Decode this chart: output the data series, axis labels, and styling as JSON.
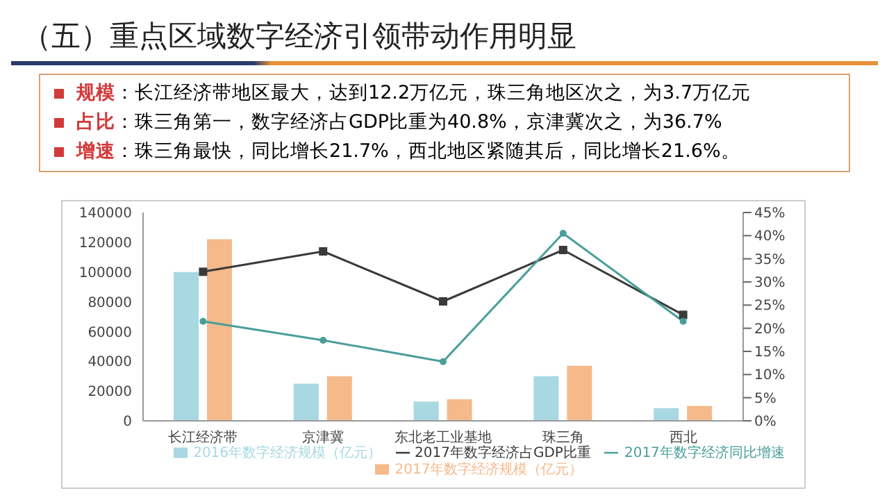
{
  "chart_data": {
    "type": "bar",
    "title": "（五）重点区域数字经济引领带动作用明显",
    "annotations": [
      "规模：长江经济带地区最大，达到12.2万亿元，珠三角地区次之，为3.7万亿元",
      "占比：珠三角第一，数字经济占GDP比重为40.8%，京津冀次之，为36.7%",
      "增速：珠三角最快，同比增长21.7%，西北地区紧随其后，同比增长21.6%。"
    ],
    "categories": [
      "长江经济带",
      "京津冀",
      "东北老工业基地",
      "珠三角",
      "西北"
    ],
    "series": [
      {
        "name": "2016年数字经济规模（亿元）",
        "color": "#a8d8e2",
        "values": [
          100000,
          25000,
          13000,
          30000,
          8500
        ]
      },
      {
        "name": "2017年数字经济规模（亿元）",
        "color": "#f5b98a",
        "values": [
          122000,
          30000,
          14500,
          37000,
          10000
        ]
      },
      {
        "name": "2017年数字经济占GDP比重",
        "type": "line",
        "axis": "y2",
        "marker": "square",
        "color": "#3a3a3a",
        "values": [
          32.2,
          36.6,
          25.8,
          36.9,
          22.9
        ]
      },
      {
        "name": "2017年数字经济同比增速",
        "type": "line",
        "axis": "y2",
        "marker": "circle",
        "color": "#4a9e9a",
        "values": [
          21.5,
          17.4,
          12.8,
          40.5,
          21.5
        ]
      }
    ],
    "ylim": [
      0,
      140000
    ],
    "yticks": [
      0,
      20000,
      40000,
      60000,
      80000,
      100000,
      120000,
      140000
    ],
    "y2lim": [
      0,
      45
    ],
    "y2ticks": [
      {
        "value": 0,
        "label": "0%"
      },
      {
        "value": 5,
        "label": "5%"
      },
      {
        "value": 10,
        "label": "10%"
      },
      {
        "value": 15,
        "label": "15%"
      },
      {
        "value": 20,
        "label": "20%"
      },
      {
        "value": 25,
        "label": "25%"
      },
      {
        "value": 30,
        "label": "30%"
      },
      {
        "value": 35,
        "label": "35%"
      },
      {
        "value": 40,
        "label": "40%"
      },
      {
        "value": 45,
        "label": "45%"
      }
    ],
    "grid": false,
    "legend": "bottom"
  }
}
